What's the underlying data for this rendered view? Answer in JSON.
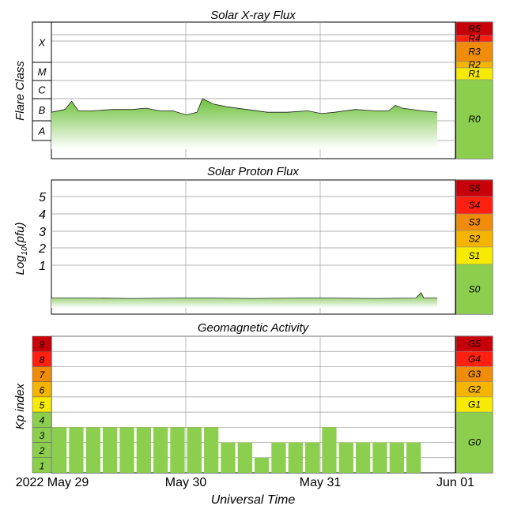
{
  "chart_data": [
    {
      "type": "area",
      "title": "Solar X-ray Flux",
      "ylabel": "Flare Class",
      "y_class_labels": [
        "X",
        "M",
        "C",
        "B",
        "A"
      ],
      "scale_labels": [
        "R5",
        "R4",
        "R3",
        "R2",
        "R1",
        "R0"
      ],
      "scale_colors": [
        "#c8000a",
        "#ff2010",
        "#f08c0a",
        "#f4b400",
        "#f5ea00",
        "#8ccf4e"
      ],
      "x_range": [
        0,
        3
      ],
      "ylim": [
        0,
        10
      ],
      "series": [
        {
          "x": [
            0,
            0.1,
            0.15,
            0.2,
            0.3,
            0.45,
            0.6,
            0.7,
            0.8,
            0.9,
            1.0,
            1.08,
            1.12,
            1.2,
            1.3,
            1.45,
            1.6,
            1.75,
            1.9,
            2.0,
            2.1,
            2.25,
            2.4,
            2.5,
            2.55,
            2.6,
            2.75,
            2.86
          ],
          "values": [
            3.4,
            3.6,
            4.2,
            3.5,
            3.5,
            3.6,
            3.6,
            3.7,
            3.5,
            3.5,
            3.2,
            3.4,
            4.4,
            4.0,
            3.8,
            3.6,
            3.4,
            3.4,
            3.5,
            3.3,
            3.4,
            3.6,
            3.5,
            3.5,
            3.9,
            3.7,
            3.5,
            3.4
          ]
        }
      ]
    },
    {
      "type": "area",
      "title": "Solar Proton Flux",
      "ylabel": "Log10(pfu)",
      "ylabel_main": "Log",
      "ylabel_sub": "10",
      "ylabel_tail": "(pfu)",
      "y_ticks": [
        "5",
        "4",
        "3",
        "2",
        "1"
      ],
      "scale_labels": [
        "S5",
        "S4",
        "S3",
        "S2",
        "S1",
        "S0"
      ],
      "scale_colors": [
        "#c8000a",
        "#ff2010",
        "#f08c0a",
        "#f4b400",
        "#f5ea00",
        "#8ccf4e"
      ],
      "x_range": [
        0,
        3
      ],
      "ylim": [
        -1.5,
        6
      ],
      "series": [
        {
          "x": [
            0,
            0.3,
            0.6,
            0.9,
            1.2,
            1.5,
            1.8,
            2.1,
            2.4,
            2.7,
            2.74,
            2.76,
            2.86
          ],
          "values": [
            -0.6,
            -0.6,
            -0.62,
            -0.6,
            -0.6,
            -0.62,
            -0.6,
            -0.6,
            -0.62,
            -0.6,
            -0.3,
            -0.6,
            -0.6
          ]
        }
      ]
    },
    {
      "type": "bar",
      "title": "Geomagnetic Activity",
      "ylabel": "Kp index",
      "y_ticks": [
        "9",
        "8",
        "7",
        "6",
        "5",
        "4",
        "3",
        "2",
        "1"
      ],
      "y_tick_colors": [
        "#c8000a",
        "#ff2010",
        "#f08c0a",
        "#f4b400",
        "#f5ea00",
        "#8ccf4e",
        "#8ccf4e",
        "#8ccf4e",
        "#8ccf4e"
      ],
      "scale_labels": [
        "G5",
        "G4",
        "G3",
        "G2",
        "G1",
        "G0"
      ],
      "scale_colors": [
        "#c8000a",
        "#ff2010",
        "#f08c0a",
        "#f4b400",
        "#f5ea00",
        "#8ccf4e"
      ],
      "bar_color": "#8ccf4e",
      "ylim": [
        0,
        9
      ],
      "x_range": [
        0,
        3
      ],
      "x": [
        0,
        0.125,
        0.25,
        0.375,
        0.5,
        0.625,
        0.75,
        0.875,
        1.0,
        1.125,
        1.25,
        1.375,
        1.5,
        1.625,
        1.75,
        1.875,
        2.0,
        2.125,
        2.25,
        2.375,
        2.5,
        2.625,
        2.75
      ],
      "values": [
        3,
        3,
        3,
        3,
        3,
        3,
        3,
        3,
        3,
        3,
        2,
        2,
        1,
        2,
        2,
        2,
        3,
        2,
        2,
        2,
        2,
        2,
        0
      ]
    }
  ],
  "x_axis": {
    "tick_labels": [
      "2022 May 29",
      "May 30",
      "May 31",
      "Jun 01"
    ],
    "xlabel": "Universal Time"
  }
}
